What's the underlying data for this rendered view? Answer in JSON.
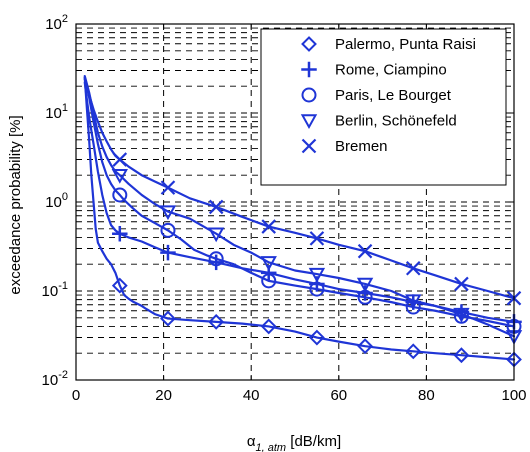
{
  "chart_data": {
    "type": "line",
    "title": "",
    "xlabel": "α1, atm [dB/km]",
    "ylabel": "exceedance probability [%]",
    "x_scale": "linear",
    "y_scale": "log",
    "xlim": [
      0,
      100
    ],
    "ylim": [
      0.01,
      100
    ],
    "x_ticks": [
      0,
      20,
      40,
      60,
      80,
      100
    ],
    "y_ticks": [
      0.01,
      0.1,
      1,
      10,
      100
    ],
    "grid": true,
    "legend_position": "top-right",
    "line_color": "#1f35d6",
    "series": [
      {
        "name": "Palermo, Punta Raisi",
        "marker": "diamond",
        "points": [
          [
            2,
            25
          ],
          [
            2.5,
            11
          ],
          [
            3,
            5
          ],
          [
            3.5,
            2
          ],
          [
            4,
            1.0
          ],
          [
            4.5,
            0.5
          ],
          [
            5,
            0.35
          ],
          [
            6,
            0.28
          ],
          [
            7,
            0.23
          ],
          [
            8,
            0.2
          ],
          [
            9,
            0.16
          ],
          [
            10,
            0.115
          ],
          [
            11,
            0.09
          ],
          [
            12,
            0.082
          ],
          [
            13,
            0.076
          ],
          [
            14,
            0.072
          ],
          [
            15,
            0.068
          ],
          [
            16,
            0.063
          ],
          [
            18,
            0.055
          ],
          [
            21,
            0.049
          ],
          [
            26,
            0.047
          ],
          [
            32,
            0.045
          ],
          [
            38,
            0.043
          ],
          [
            44,
            0.04
          ],
          [
            50,
            0.035
          ],
          [
            55,
            0.03
          ],
          [
            60,
            0.027
          ],
          [
            66,
            0.024
          ],
          [
            72,
            0.022
          ],
          [
            77,
            0.021
          ],
          [
            82,
            0.02
          ],
          [
            88,
            0.019
          ],
          [
            94,
            0.018
          ],
          [
            100,
            0.017
          ]
        ],
        "marker_x": [
          10,
          21,
          32,
          44,
          55,
          66,
          77,
          88,
          100
        ]
      },
      {
        "name": "Rome, Ciampino",
        "marker": "plus",
        "points": [
          [
            2,
            22
          ],
          [
            2.5,
            14
          ],
          [
            3,
            9
          ],
          [
            4,
            4.5
          ],
          [
            5,
            2.2
          ],
          [
            6,
            1.2
          ],
          [
            7,
            0.75
          ],
          [
            8,
            0.55
          ],
          [
            9,
            0.48
          ],
          [
            10,
            0.44
          ],
          [
            12,
            0.4
          ],
          [
            15,
            0.36
          ],
          [
            18,
            0.31
          ],
          [
            21,
            0.27
          ],
          [
            26,
            0.24
          ],
          [
            32,
            0.21
          ],
          [
            38,
            0.18
          ],
          [
            44,
            0.16
          ],
          [
            50,
            0.135
          ],
          [
            55,
            0.12
          ],
          [
            60,
            0.105
          ],
          [
            66,
            0.095
          ],
          [
            72,
            0.085
          ],
          [
            77,
            0.075
          ],
          [
            82,
            0.068
          ],
          [
            88,
            0.058
          ],
          [
            94,
            0.05
          ],
          [
            100,
            0.045
          ]
        ],
        "marker_x": [
          10,
          21,
          32,
          44,
          55,
          66,
          77,
          88,
          100
        ]
      },
      {
        "name": "Paris, Le Bourget",
        "marker": "circle",
        "points": [
          [
            2,
            25
          ],
          [
            3,
            15
          ],
          [
            4,
            8
          ],
          [
            5,
            4.5
          ],
          [
            6,
            2.8
          ],
          [
            7,
            2.0
          ],
          [
            8,
            1.6
          ],
          [
            9,
            1.35
          ],
          [
            10,
            1.2
          ],
          [
            11,
            1.05
          ],
          [
            13,
            0.85
          ],
          [
            15,
            0.7
          ],
          [
            18,
            0.58
          ],
          [
            21,
            0.48
          ],
          [
            24,
            0.38
          ],
          [
            27,
            0.29
          ],
          [
            30,
            0.25
          ],
          [
            32,
            0.23
          ],
          [
            36,
            0.2
          ],
          [
            40,
            0.16
          ],
          [
            44,
            0.13
          ],
          [
            50,
            0.115
          ],
          [
            55,
            0.105
          ],
          [
            60,
            0.095
          ],
          [
            66,
            0.085
          ],
          [
            72,
            0.075
          ],
          [
            77,
            0.066
          ],
          [
            82,
            0.06
          ],
          [
            88,
            0.052
          ],
          [
            94,
            0.046
          ],
          [
            100,
            0.04
          ]
        ],
        "marker_x": [
          10,
          21,
          32,
          44,
          55,
          66,
          77,
          88,
          100
        ]
      },
      {
        "name": "Berlin, Schönefeld",
        "marker": "triangle-down",
        "points": [
          [
            2,
            26
          ],
          [
            3,
            17
          ],
          [
            4,
            10
          ],
          [
            5,
            6
          ],
          [
            6,
            4.2
          ],
          [
            7,
            3.2
          ],
          [
            8,
            2.6
          ],
          [
            9,
            2.2
          ],
          [
            10,
            2.0
          ],
          [
            12,
            1.6
          ],
          [
            15,
            1.2
          ],
          [
            18,
            0.95
          ],
          [
            21,
            0.78
          ],
          [
            26,
            0.65
          ],
          [
            32,
            0.44
          ],
          [
            36,
            0.33
          ],
          [
            40,
            0.27
          ],
          [
            44,
            0.21
          ],
          [
            50,
            0.17
          ],
          [
            55,
            0.155
          ],
          [
            60,
            0.14
          ],
          [
            66,
            0.12
          ],
          [
            72,
            0.1
          ],
          [
            77,
            0.078
          ],
          [
            82,
            0.068
          ],
          [
            88,
            0.055
          ],
          [
            94,
            0.042
          ],
          [
            100,
            0.031
          ]
        ],
        "marker_x": [
          10,
          21,
          32,
          44,
          55,
          66,
          77,
          88,
          100
        ]
      },
      {
        "name": "Bremen",
        "marker": "x",
        "points": [
          [
            2,
            24
          ],
          [
            3,
            16
          ],
          [
            4,
            11
          ],
          [
            5,
            8
          ],
          [
            6,
            6
          ],
          [
            7,
            4.8
          ],
          [
            8,
            3.9
          ],
          [
            9,
            3.3
          ],
          [
            10,
            3.0
          ],
          [
            12,
            2.5
          ],
          [
            15,
            2.0
          ],
          [
            18,
            1.7
          ],
          [
            21,
            1.45
          ],
          [
            26,
            1.1
          ],
          [
            32,
            0.88
          ],
          [
            38,
            0.68
          ],
          [
            44,
            0.53
          ],
          [
            50,
            0.45
          ],
          [
            55,
            0.39
          ],
          [
            60,
            0.33
          ],
          [
            66,
            0.28
          ],
          [
            72,
            0.22
          ],
          [
            77,
            0.18
          ],
          [
            82,
            0.15
          ],
          [
            88,
            0.12
          ],
          [
            94,
            0.1
          ],
          [
            100,
            0.083
          ]
        ],
        "marker_x": [
          10,
          21,
          32,
          44,
          55,
          66,
          77,
          88,
          100
        ]
      }
    ]
  }
}
